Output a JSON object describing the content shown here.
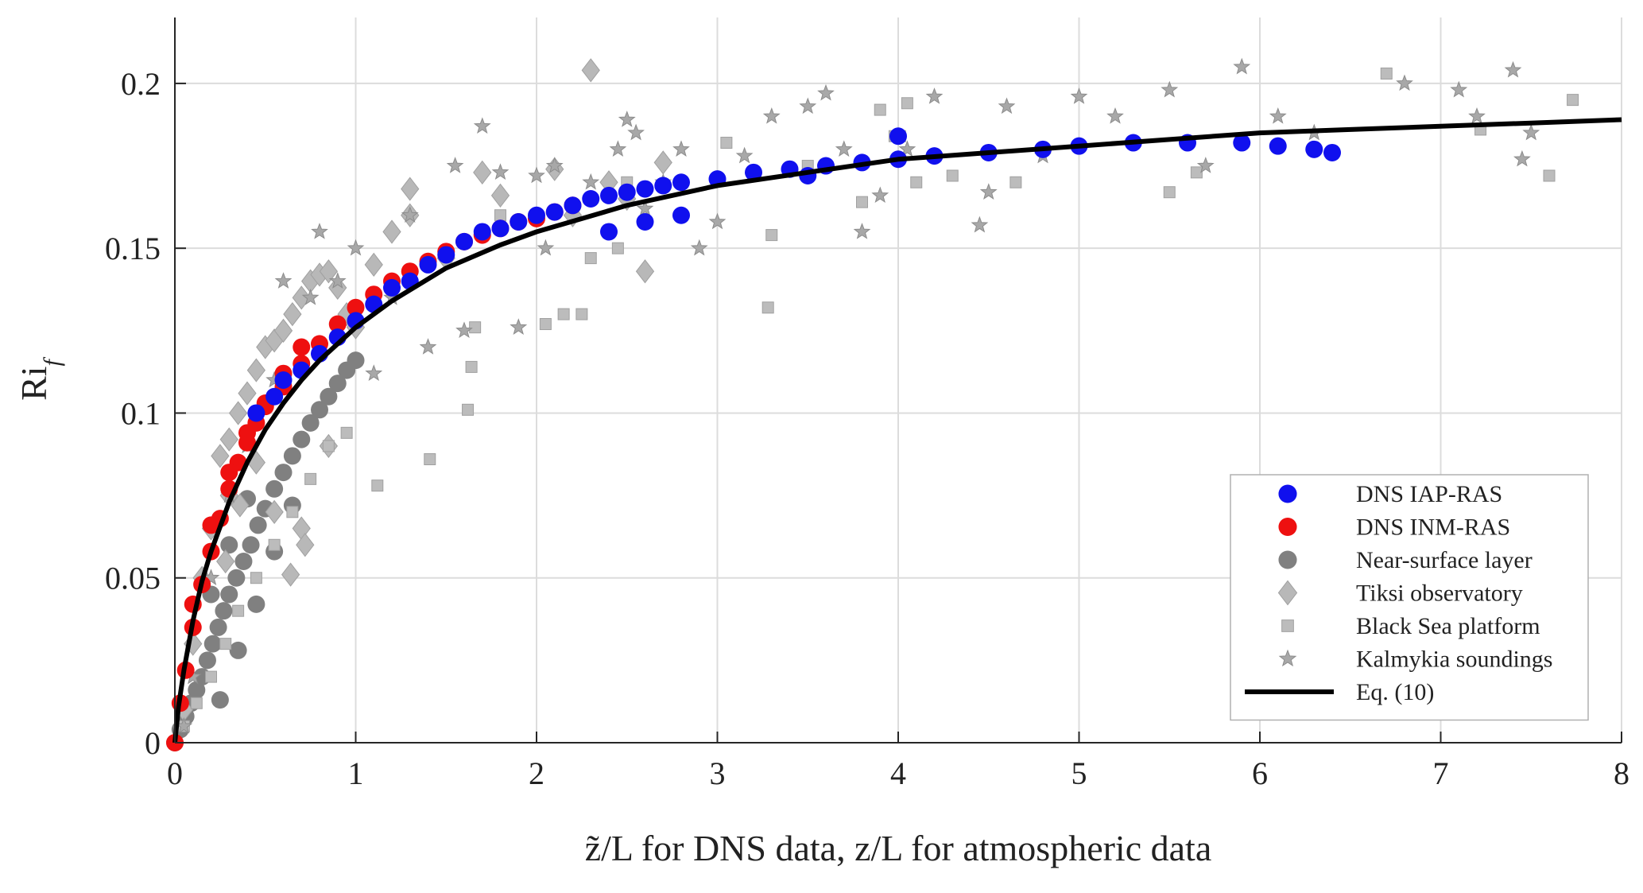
{
  "chart_data": {
    "type": "scatter",
    "xlabel": "z̃/L for DNS data, z/L for atmospheric data",
    "ylabel": "Ri_f",
    "xlim": [
      0,
      8
    ],
    "ylim": [
      0,
      0.22
    ],
    "grid": true,
    "legend_position": "bottom-right",
    "x_ticks": [
      "0",
      "1",
      "2",
      "3",
      "4",
      "5",
      "6",
      "7",
      "8"
    ],
    "y_ticks": [
      "0",
      "0.05",
      "0.1",
      "0.15",
      "0.2"
    ],
    "series": [
      {
        "name": "DNS IAP-RAS",
        "marker": "circle",
        "color": "#1010ee",
        "x": [
          0.45,
          0.55,
          0.6,
          0.7,
          0.8,
          0.9,
          1.0,
          1.1,
          1.2,
          1.3,
          1.4,
          1.5,
          1.6,
          1.7,
          1.8,
          1.9,
          2.0,
          2.1,
          2.2,
          2.3,
          2.4,
          2.5,
          2.6,
          2.7,
          2.8,
          3.0,
          3.2,
          3.4,
          3.6,
          3.8,
          4.0,
          4.2,
          4.5,
          4.8,
          5.0,
          5.3,
          5.6,
          5.9,
          6.1,
          6.3,
          6.4,
          2.4,
          2.6,
          2.8,
          3.5,
          4.0
        ],
        "y": [
          0.1,
          0.105,
          0.11,
          0.113,
          0.118,
          0.123,
          0.128,
          0.133,
          0.138,
          0.14,
          0.145,
          0.148,
          0.152,
          0.155,
          0.156,
          0.158,
          0.16,
          0.161,
          0.163,
          0.165,
          0.166,
          0.167,
          0.168,
          0.169,
          0.17,
          0.171,
          0.173,
          0.174,
          0.175,
          0.176,
          0.177,
          0.178,
          0.179,
          0.18,
          0.181,
          0.182,
          0.182,
          0.182,
          0.181,
          0.18,
          0.179,
          0.155,
          0.158,
          0.16,
          0.172,
          0.184
        ]
      },
      {
        "name": "DNS INM-RAS",
        "marker": "circle",
        "color": "#ee1010",
        "x": [
          0.0,
          0.03,
          0.06,
          0.1,
          0.15,
          0.2,
          0.25,
          0.3,
          0.35,
          0.4,
          0.45,
          0.5,
          0.6,
          0.7,
          0.8,
          0.9,
          1.0,
          1.1,
          1.2,
          1.3,
          1.4,
          1.5,
          1.6,
          1.7,
          1.8,
          1.9,
          2.0,
          2.1,
          2.2,
          0.1,
          0.2,
          0.3,
          0.4,
          0.5,
          0.6,
          0.7
        ],
        "y": [
          0.0,
          0.012,
          0.022,
          0.035,
          0.048,
          0.058,
          0.068,
          0.077,
          0.085,
          0.091,
          0.097,
          0.102,
          0.108,
          0.115,
          0.121,
          0.127,
          0.132,
          0.136,
          0.14,
          0.143,
          0.146,
          0.149,
          0.152,
          0.154,
          0.156,
          0.158,
          0.159,
          0.161,
          0.163,
          0.042,
          0.066,
          0.082,
          0.094,
          0.103,
          0.112,
          0.12
        ]
      },
      {
        "name": "Near-surface layer",
        "marker": "circle",
        "color": "#808080",
        "x": [
          0.0,
          0.03,
          0.06,
          0.09,
          0.12,
          0.15,
          0.18,
          0.21,
          0.24,
          0.27,
          0.3,
          0.34,
          0.38,
          0.42,
          0.46,
          0.5,
          0.55,
          0.6,
          0.65,
          0.7,
          0.75,
          0.8,
          0.85,
          0.9,
          0.95,
          1.0,
          0.25,
          0.35,
          0.45,
          0.55,
          0.65,
          0.2,
          0.3,
          0.4
        ],
        "y": [
          0.0,
          0.004,
          0.008,
          0.012,
          0.016,
          0.02,
          0.025,
          0.03,
          0.035,
          0.04,
          0.045,
          0.05,
          0.055,
          0.06,
          0.066,
          0.071,
          0.077,
          0.082,
          0.087,
          0.092,
          0.097,
          0.101,
          0.105,
          0.109,
          0.113,
          0.116,
          0.013,
          0.028,
          0.042,
          0.058,
          0.072,
          0.045,
          0.06,
          0.074
        ]
      },
      {
        "name": "Tiksi observatory",
        "marker": "diamond",
        "color": "#b8b8b8",
        "x": [
          0.05,
          0.1,
          0.15,
          0.2,
          0.25,
          0.3,
          0.35,
          0.4,
          0.45,
          0.5,
          0.55,
          0.6,
          0.65,
          0.7,
          0.75,
          0.8,
          0.85,
          0.9,
          0.95,
          1.0,
          1.2,
          1.3,
          1.5,
          1.7,
          1.8,
          2.1,
          2.2,
          2.3,
          2.4,
          2.5,
          2.6,
          2.7,
          0.3,
          0.45,
          0.55,
          0.7,
          0.85,
          1.1,
          1.3,
          0.28,
          0.36,
          0.64,
          0.72
        ],
        "y": [
          0.01,
          0.03,
          0.05,
          0.065,
          0.087,
          0.092,
          0.1,
          0.106,
          0.113,
          0.12,
          0.122,
          0.125,
          0.13,
          0.135,
          0.14,
          0.142,
          0.143,
          0.138,
          0.13,
          0.126,
          0.155,
          0.16,
          0.147,
          0.173,
          0.166,
          0.174,
          0.16,
          0.204,
          0.17,
          0.165,
          0.143,
          0.176,
          0.075,
          0.085,
          0.07,
          0.065,
          0.09,
          0.145,
          0.168,
          0.055,
          0.072,
          0.051,
          0.06
        ]
      },
      {
        "name": "Black Sea platform",
        "marker": "square",
        "color": "#bcbcbc",
        "x": [
          0.05,
          0.12,
          0.2,
          0.28,
          0.35,
          0.45,
          0.55,
          0.65,
          0.75,
          0.85,
          0.95,
          1.12,
          1.41,
          1.62,
          1.64,
          1.66,
          2.05,
          2.15,
          2.25,
          2.3,
          2.45,
          3.05,
          3.28,
          3.3,
          3.5,
          3.8,
          3.9,
          3.98,
          4.01,
          4.05,
          4.1,
          4.3,
          4.65,
          5.5,
          5.65,
          6.7,
          7.22,
          7.6,
          7.73,
          1.8,
          2.5
        ],
        "y": [
          0.005,
          0.012,
          0.02,
          0.03,
          0.04,
          0.05,
          0.06,
          0.07,
          0.08,
          0.09,
          0.094,
          0.078,
          0.086,
          0.101,
          0.114,
          0.126,
          0.127,
          0.13,
          0.13,
          0.147,
          0.15,
          0.182,
          0.132,
          0.154,
          0.175,
          0.164,
          0.192,
          0.184,
          0.184,
          0.194,
          0.17,
          0.172,
          0.17,
          0.167,
          0.173,
          0.203,
          0.186,
          0.172,
          0.195,
          0.16,
          0.17
        ]
      },
      {
        "name": "Kalmykia soundings",
        "marker": "star",
        "color": "#a8a8a8",
        "x": [
          0.05,
          0.1,
          0.2,
          0.3,
          0.4,
          0.55,
          0.6,
          0.75,
          0.8,
          0.9,
          1.0,
          1.2,
          1.3,
          1.4,
          1.55,
          1.6,
          1.7,
          1.8,
          1.9,
          2.0,
          2.05,
          2.1,
          2.3,
          2.45,
          2.5,
          2.6,
          2.7,
          2.8,
          2.9,
          3.0,
          3.3,
          3.5,
          3.6,
          3.7,
          3.8,
          3.9,
          4.05,
          4.2,
          4.5,
          4.6,
          4.8,
          5.0,
          5.2,
          5.5,
          5.7,
          5.9,
          6.1,
          6.3,
          6.8,
          7.1,
          7.2,
          7.4,
          7.45,
          7.5,
          1.1,
          2.55,
          3.15,
          4.45
        ],
        "y": [
          0.005,
          0.02,
          0.05,
          0.075,
          0.09,
          0.11,
          0.14,
          0.135,
          0.155,
          0.14,
          0.15,
          0.135,
          0.16,
          0.12,
          0.175,
          0.125,
          0.187,
          0.173,
          0.126,
          0.172,
          0.15,
          0.175,
          0.17,
          0.18,
          0.189,
          0.162,
          0.17,
          0.18,
          0.15,
          0.158,
          0.19,
          0.193,
          0.197,
          0.18,
          0.155,
          0.166,
          0.18,
          0.196,
          0.167,
          0.193,
          0.178,
          0.196,
          0.19,
          0.198,
          0.175,
          0.205,
          0.19,
          0.185,
          0.2,
          0.198,
          0.19,
          0.204,
          0.177,
          0.185,
          0.112,
          0.185,
          0.178,
          0.157
        ]
      },
      {
        "name": "Eq. (10)",
        "marker": "line",
        "color": "#000000",
        "x": [
          0.0,
          0.02,
          0.05,
          0.1,
          0.15,
          0.2,
          0.3,
          0.4,
          0.5,
          0.6,
          0.7,
          0.8,
          1.0,
          1.2,
          1.5,
          1.8,
          2.0,
          2.5,
          3.0,
          3.5,
          4.0,
          4.5,
          5.0,
          5.5,
          6.0,
          6.5,
          7.0,
          7.5,
          8.0
        ],
        "y": [
          0.0,
          0.011,
          0.022,
          0.037,
          0.049,
          0.058,
          0.073,
          0.085,
          0.095,
          0.103,
          0.11,
          0.116,
          0.126,
          0.134,
          0.144,
          0.151,
          0.155,
          0.163,
          0.169,
          0.173,
          0.177,
          0.179,
          0.181,
          0.183,
          0.185,
          0.186,
          0.187,
          0.188,
          0.189
        ]
      }
    ]
  }
}
